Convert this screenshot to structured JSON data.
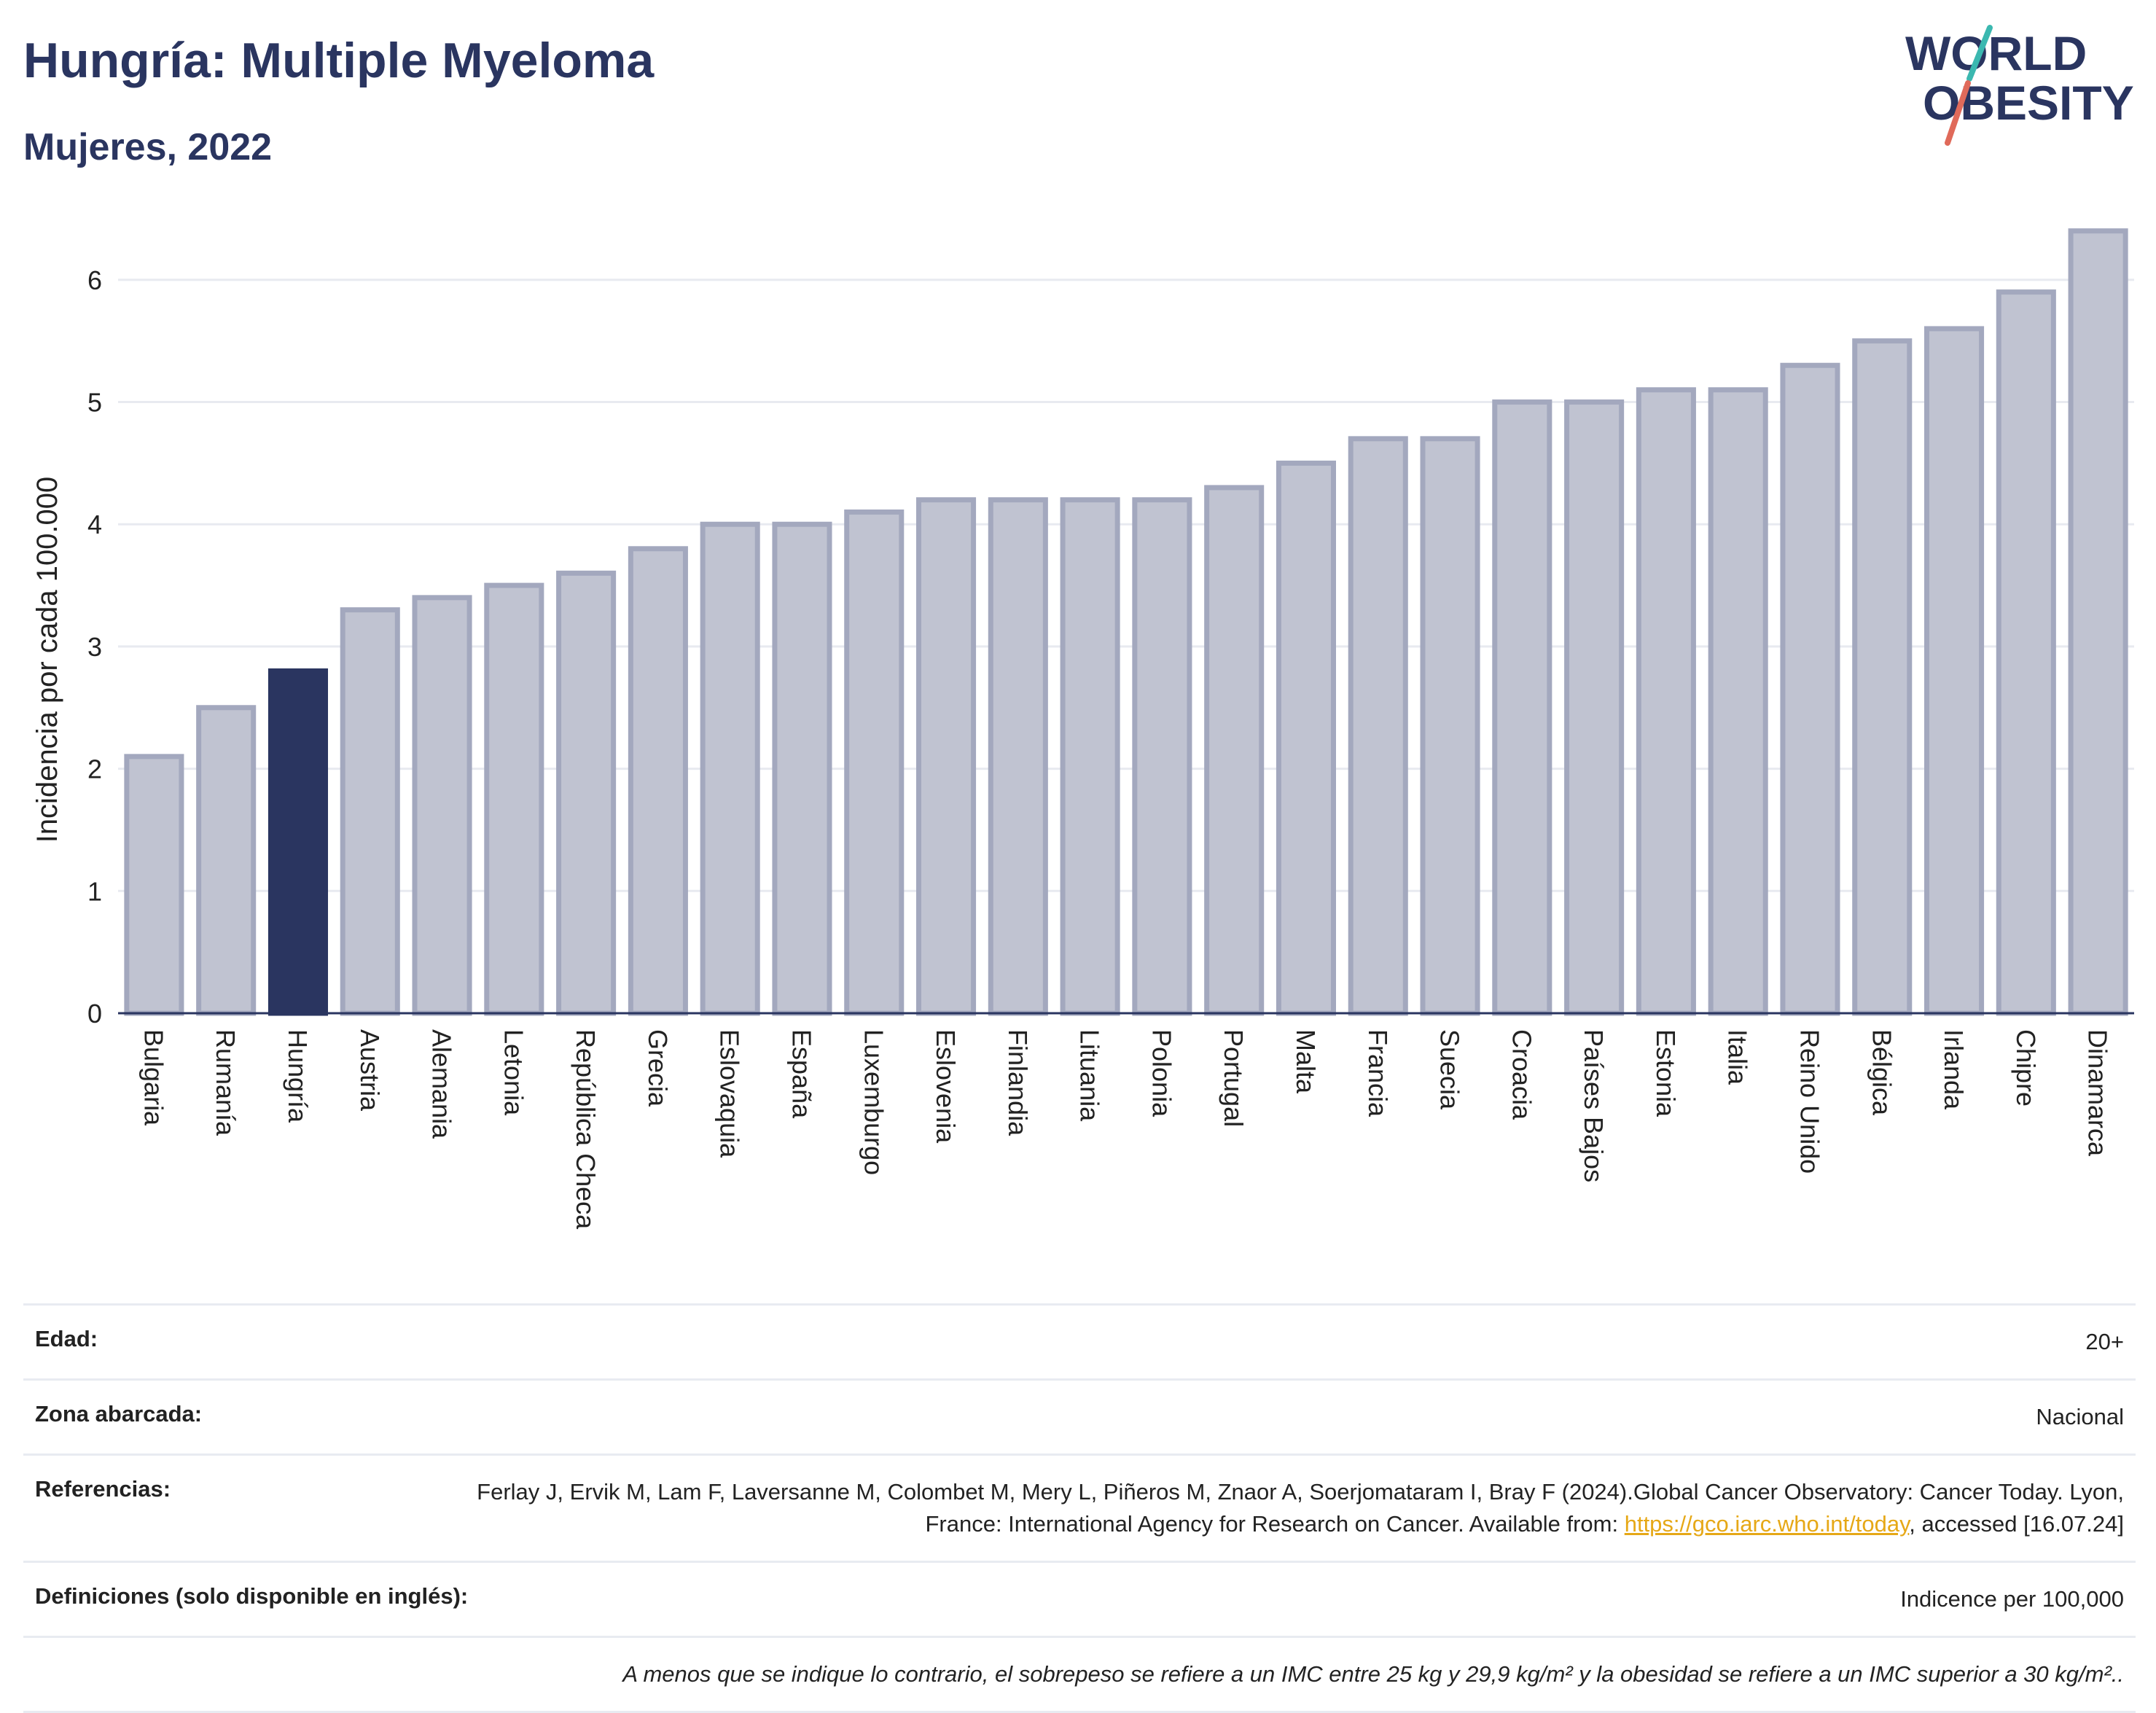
{
  "header": {
    "title": "Hungría: Multiple Myeloma",
    "subtitle": "Mujeres, 2022"
  },
  "logo": {
    "line1": "WORLD",
    "line2": "OBESITY",
    "name": "world-obesity-logo"
  },
  "chart_data": {
    "type": "bar",
    "title": "Hungría: Multiple Myeloma",
    "subtitle": "Mujeres, 2022",
    "ylabel": "Incidencia por cada 100.000",
    "xlabel": "",
    "ylim": [
      0,
      6.5
    ],
    "yticks": [
      0,
      1,
      2,
      3,
      4,
      5,
      6
    ],
    "grid": true,
    "highlight": "Hungría",
    "colors": {
      "bar": "#c0c3d1",
      "bar_edge": "#a3a8be",
      "highlight": "#2a3560"
    },
    "categories": [
      "Bulgaria",
      "Rumanía",
      "Hungría",
      "Austria",
      "Alemania",
      "Letonia",
      "República Checa",
      "Grecia",
      "Eslovaquia",
      "España",
      "Luxemburgo",
      "Eslovenia",
      "Finlandia",
      "Lituania",
      "Polonia",
      "Portugal",
      "Malta",
      "Francia",
      "Suecia",
      "Croacia",
      "Países Bajos",
      "Estonia",
      "Italia",
      "Reino Unido",
      "Bélgica",
      "Irlanda",
      "Chipre",
      "Dinamarca"
    ],
    "values": [
      2.1,
      2.5,
      2.8,
      3.3,
      3.4,
      3.5,
      3.6,
      3.8,
      4.0,
      4.0,
      4.1,
      4.2,
      4.2,
      4.2,
      4.2,
      4.3,
      4.5,
      4.7,
      4.7,
      5.0,
      5.0,
      5.1,
      5.1,
      5.3,
      5.5,
      5.6,
      5.9,
      6.4
    ]
  },
  "info": {
    "age_label": "Edad:",
    "age_value": "20+",
    "area_label": "Zona abarcada:",
    "area_value": "Nacional",
    "refs_label": "Referencias:",
    "refs_text": "Ferlay J, Ervik M, Lam F, Laversanne M, Colombet M, Mery L, Piñeros M, Znaor A, Soerjomataram I, Bray F (2024).Global Cancer Observatory: Cancer Today. Lyon, France: International Agency for Research on Cancer. Available from:",
    "refs_link": "https://gco.iarc.who.int/today",
    "refs_tail": ", accessed [16.07.24]",
    "defs_label": "Definiciones (solo disponible en inglés):",
    "defs_value": "Indicence per 100,000",
    "note": "A menos que se indique lo contrario, el sobrepeso se refiere a un IMC entre 25 kg y 29,9 kg/m² y la obesidad se refiere a un IMC superior a 30 kg/m².."
  }
}
